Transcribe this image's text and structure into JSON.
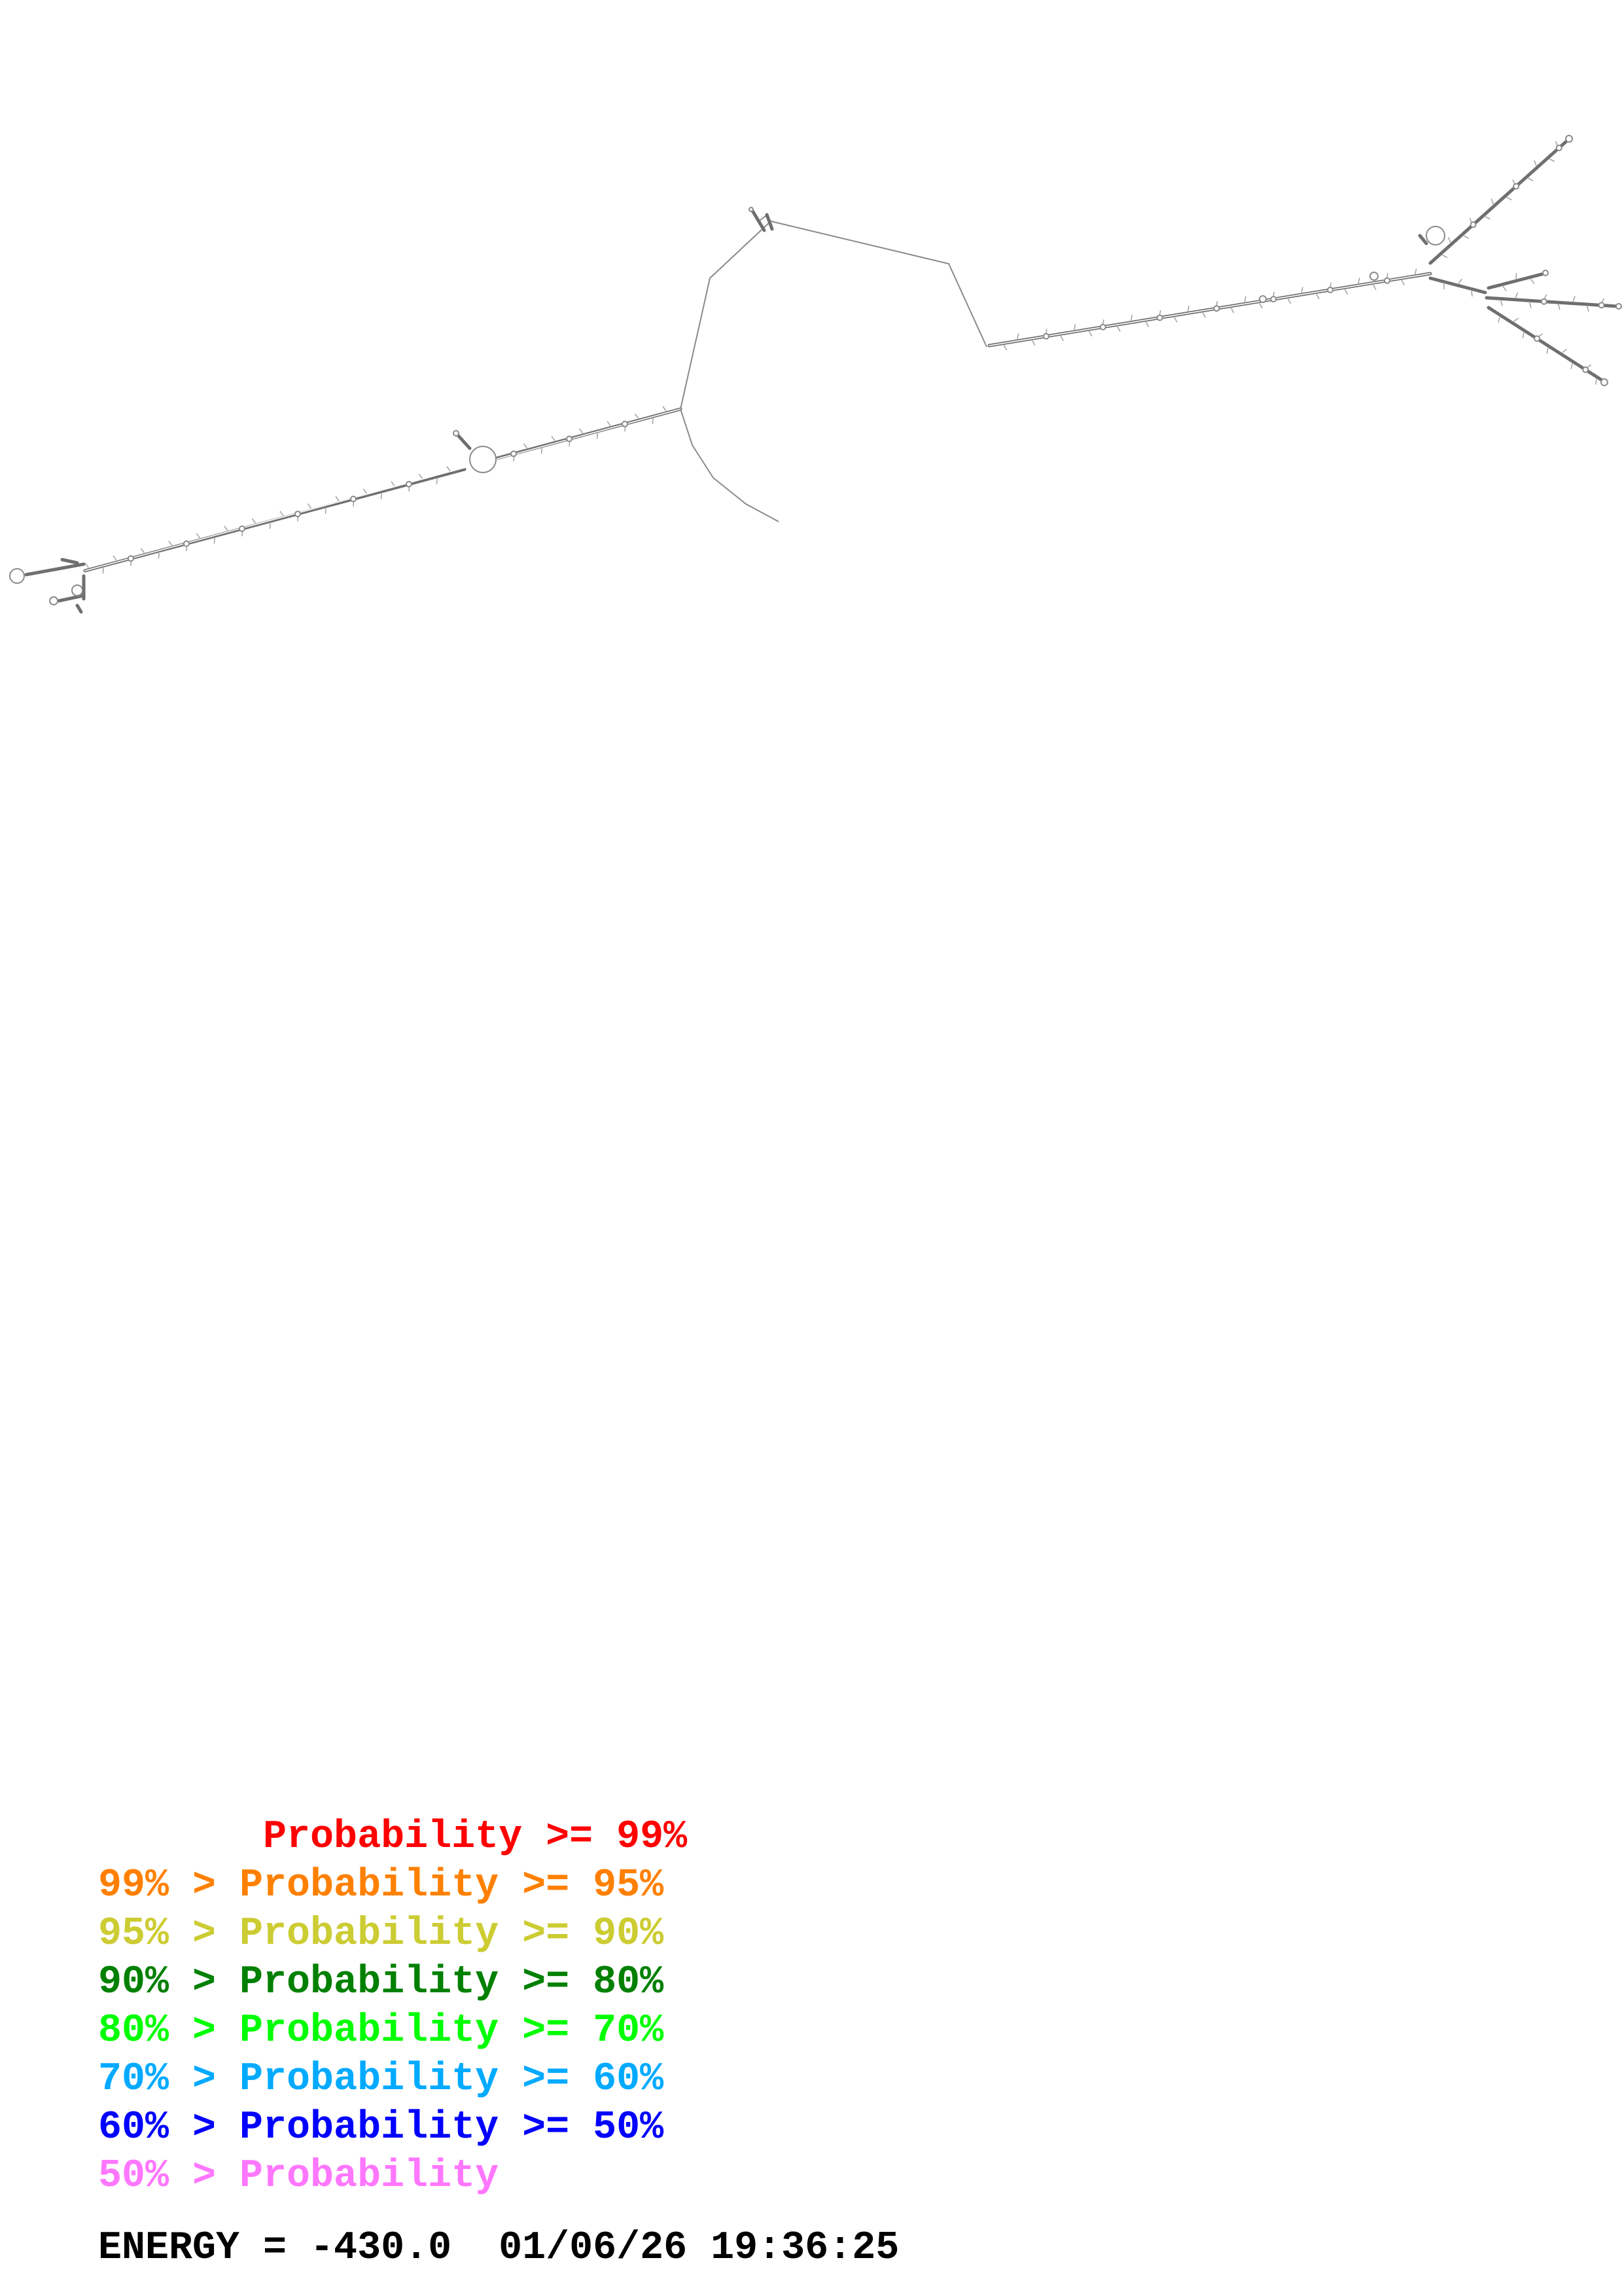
{
  "legend": {
    "items": [
      {
        "text": "       Probability >= 99%",
        "color": "#ff0000"
      },
      {
        "text": "99% > Probability >= 95%",
        "color": "#ff8000"
      },
      {
        "text": "95% > Probability >= 90%",
        "color": "#cccc33"
      },
      {
        "text": "90% > Probability >= 80%",
        "color": "#008000"
      },
      {
        "text": "80% > Probability >= 70%",
        "color": "#00ff00"
      },
      {
        "text": "70% > Probability >= 60%",
        "color": "#00aaff"
      },
      {
        "text": "60% > Probability >= 50%",
        "color": "#0000ff"
      },
      {
        "text": "50% > Probability",
        "color": "#ff77ff"
      }
    ]
  },
  "footer": {
    "energy_text": "ENERGY = -430.0  01/06/26 19:36:25"
  },
  "structure": {
    "line_color": "#8a8a8a",
    "helix_color": "#6f6f6f"
  }
}
